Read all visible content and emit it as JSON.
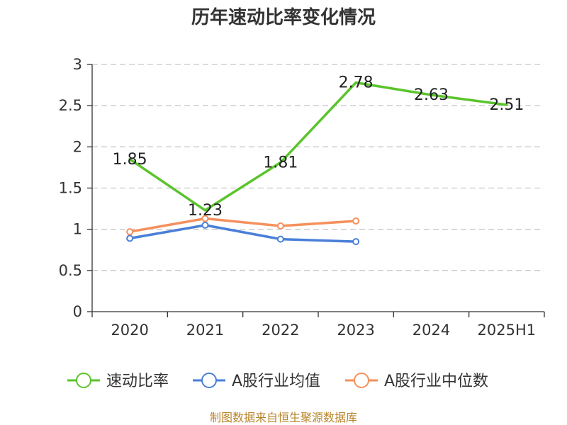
{
  "chart_data": {
    "type": "line",
    "title": "历年速动比率变化情况",
    "categories": [
      "2020",
      "2021",
      "2022",
      "2023",
      "2024",
      "2025H1"
    ],
    "ylim": [
      0,
      3
    ],
    "yticks": [
      0,
      0.5,
      1,
      1.5,
      2,
      2.5,
      3
    ],
    "ytick_labels": [
      "0",
      "0.5",
      "1",
      "1.5",
      "2",
      "2.5",
      "3"
    ],
    "grid": "horizontal-dashed",
    "legend_position": "bottom-center",
    "series": [
      {
        "name": "速动比率",
        "color": "#5bc42c",
        "values": [
          1.85,
          1.23,
          1.81,
          2.78,
          2.63,
          2.51
        ],
        "labels": [
          "1.85",
          "1.23",
          "1.81",
          "2.78",
          "2.63",
          "2.51"
        ],
        "show_markers": false
      },
      {
        "name": "A股行业均值",
        "color": "#4a7fd8",
        "values": [
          0.89,
          1.05,
          0.88,
          0.85,
          null,
          null
        ],
        "show_markers": true
      },
      {
        "name": "A股行业中位数",
        "color": "#f5905c",
        "values": [
          0.97,
          1.13,
          1.04,
          1.1,
          null,
          null
        ],
        "show_markers": true
      }
    ]
  },
  "footer": {
    "source": "制图数据来自恒生聚源数据库"
  }
}
